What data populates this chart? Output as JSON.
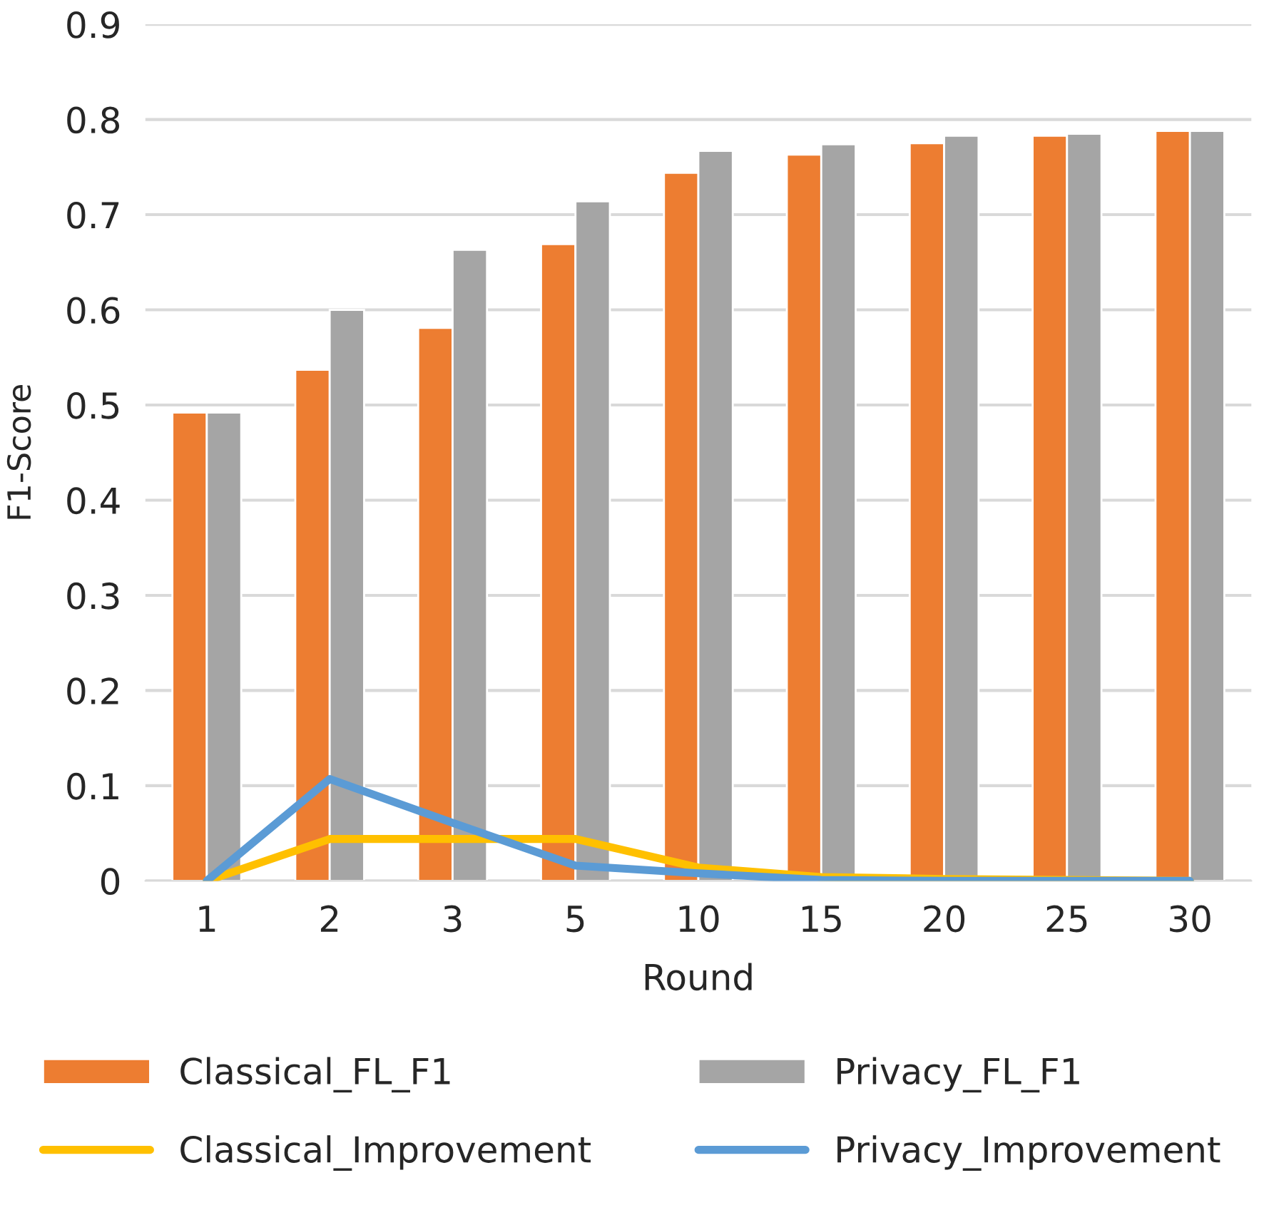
{
  "chart_data": {
    "type": "bar",
    "xlabel": "Round",
    "ylabel": "F1-Score",
    "categories": [
      "1",
      "2",
      "3",
      "5",
      "10",
      "15",
      "20",
      "25",
      "30"
    ],
    "series": [
      {
        "name": "Classical_FL_F1",
        "color": "#ed7d31",
        "values": [
          0.492,
          0.537,
          0.581,
          0.669,
          0.744,
          0.763,
          0.775,
          0.783,
          0.788
        ]
      },
      {
        "name": "Privacy_FL_F1",
        "color": "#a5a5a5",
        "values": [
          0.492,
          0.6,
          0.663,
          0.714,
          0.767,
          0.774,
          0.783,
          0.785,
          0.788
        ]
      },
      {
        "name": "Classical_Improvement",
        "type": "line",
        "color": "#ffc000",
        "values": [
          0,
          0.044,
          0.044,
          0.044,
          0.014,
          0.004,
          0.002,
          0.001,
          0
        ]
      },
      {
        "name": "Privacy_Improvement",
        "type": "line",
        "color": "#5b9bd5",
        "values": [
          0,
          0.107,
          0.061,
          0.016,
          0.008,
          0.001,
          0,
          0,
          0
        ]
      }
    ],
    "ylim": [
      0,
      0.9
    ],
    "yticks": [
      0,
      0.1,
      0.2,
      0.3,
      0.4,
      0.5,
      0.6,
      0.7,
      0.8,
      0.9
    ],
    "grid": "y",
    "legend": "bottom",
    "marker": "none",
    "line_style": "solid"
  }
}
